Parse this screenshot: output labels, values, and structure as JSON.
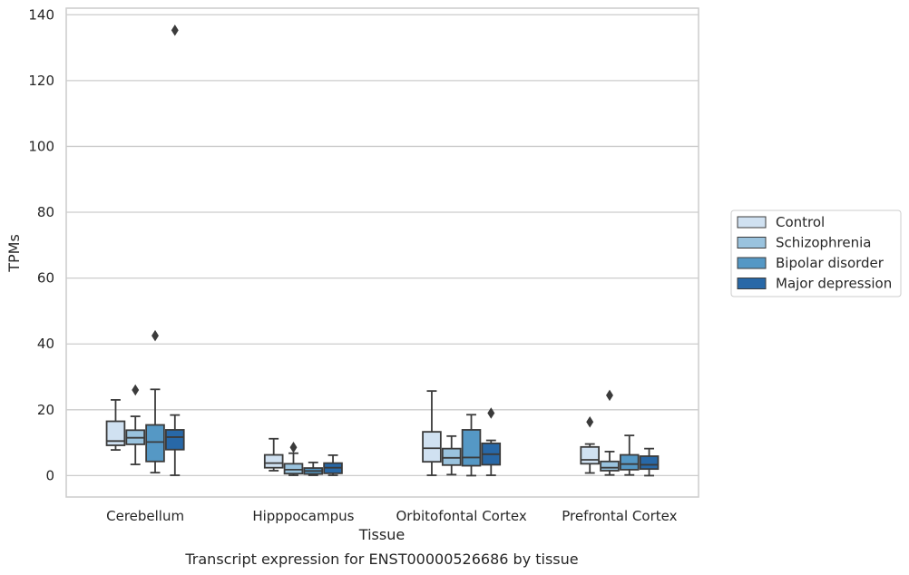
{
  "chart_data": {
    "type": "boxplot",
    "title": "",
    "caption": "Transcript expression for ENST00000526686 by tissue",
    "xlabel": "Tissue",
    "ylabel": "TPMs",
    "ylim": [
      -6.5,
      142
    ],
    "yticks": [
      0,
      20,
      40,
      60,
      80,
      100,
      120,
      140
    ],
    "grid": "horizontal",
    "legend_position": "right",
    "categories": [
      "Cerebellum",
      "Hipppocampus",
      "Orbitofontal Cortex",
      "Prefrontal Cortex"
    ],
    "series": [
      {
        "name": "Control",
        "color": "#d0e1f1",
        "boxes": [
          {
            "whislo": 7.8,
            "q1": 9.2,
            "med": 10.5,
            "q3": 16.5,
            "whishi": 23.0,
            "fliers": []
          },
          {
            "whislo": 1.5,
            "q1": 2.4,
            "med": 3.8,
            "q3": 6.3,
            "whishi": 11.2,
            "fliers": []
          },
          {
            "whislo": 0.1,
            "q1": 4.2,
            "med": 8.3,
            "q3": 13.3,
            "whishi": 25.7,
            "fliers": []
          },
          {
            "whislo": 0.8,
            "q1": 3.6,
            "med": 4.8,
            "q3": 8.7,
            "whishi": 9.6,
            "fliers": [
              16.3
            ]
          }
        ]
      },
      {
        "name": "Schizophrenia",
        "color": "#9ac3de",
        "boxes": [
          {
            "whislo": 3.4,
            "q1": 9.5,
            "med": 11.5,
            "q3": 13.8,
            "whishi": 18.0,
            "fliers": [
              26.0
            ]
          },
          {
            "whislo": 0.1,
            "q1": 0.6,
            "med": 1.8,
            "q3": 3.6,
            "whishi": 6.8,
            "fliers": [
              8.6
            ]
          },
          {
            "whislo": 0.3,
            "q1": 3.2,
            "med": 5.4,
            "q3": 8.2,
            "whishi": 12.0,
            "fliers": []
          },
          {
            "whislo": 0.2,
            "q1": 1.5,
            "med": 2.4,
            "q3": 4.3,
            "whishi": 7.3,
            "fliers": [
              24.4
            ]
          }
        ]
      },
      {
        "name": "Bipolar disorder",
        "color": "#5598c5",
        "boxes": [
          {
            "whislo": 0.9,
            "q1": 4.3,
            "med": 10.2,
            "q3": 15.4,
            "whishi": 26.2,
            "fliers": [
              42.5
            ]
          },
          {
            "whislo": 0.1,
            "q1": 0.5,
            "med": 1.4,
            "q3": 2.3,
            "whishi": 4.0,
            "fliers": []
          },
          {
            "whislo": 0.0,
            "q1": 3.0,
            "med": 5.5,
            "q3": 13.9,
            "whishi": 18.5,
            "fliers": []
          },
          {
            "whislo": 0.2,
            "q1": 1.8,
            "med": 3.5,
            "q3": 6.3,
            "whishi": 12.2,
            "fliers": []
          }
        ]
      },
      {
        "name": "Major depression",
        "color": "#2868a7",
        "boxes": [
          {
            "whislo": 0.1,
            "q1": 7.9,
            "med": 11.7,
            "q3": 13.9,
            "whishi": 18.4,
            "fliers": [
              135.3
            ]
          },
          {
            "whislo": 0.1,
            "q1": 0.7,
            "med": 2.4,
            "q3": 3.8,
            "whishi": 6.2,
            "fliers": []
          },
          {
            "whislo": 0.1,
            "q1": 3.3,
            "med": 6.5,
            "q3": 9.8,
            "whishi": 10.7,
            "fliers": [
              19.0
            ]
          },
          {
            "whislo": 0.0,
            "q1": 2.0,
            "med": 3.3,
            "q3": 5.9,
            "whishi": 8.2,
            "fliers": []
          }
        ]
      }
    ]
  }
}
